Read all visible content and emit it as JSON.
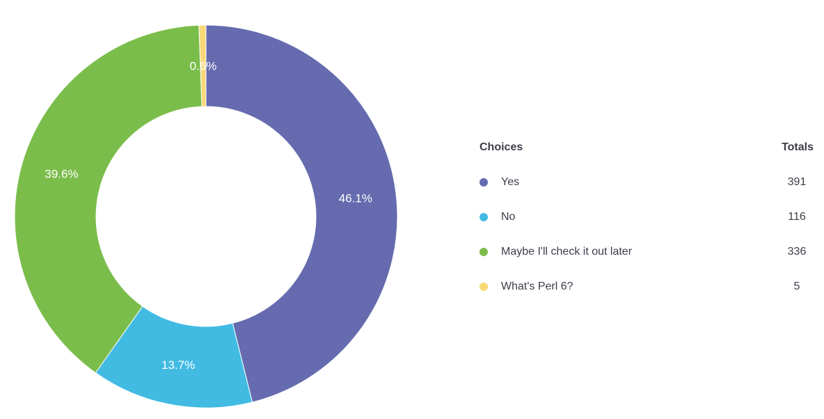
{
  "chart_data": {
    "type": "pie",
    "donut": true,
    "title": "",
    "legend_position": "right",
    "legend_headers": {
      "choices": "Choices",
      "totals": "Totals"
    },
    "slices": [
      {
        "label": "Yes",
        "value": 391,
        "percent_label": "46.1%",
        "color": "#656bae"
      },
      {
        "label": "No",
        "value": 116,
        "percent_label": "13.7%",
        "color": "#42bbe3"
      },
      {
        "label": "Maybe I'll check it out later",
        "value": 336,
        "percent_label": "39.6%",
        "color": "#7bbd4b"
      },
      {
        "label": "What's Perl 6?",
        "value": 5,
        "percent_label": "0.6%",
        "color": "#f8d877"
      }
    ]
  }
}
